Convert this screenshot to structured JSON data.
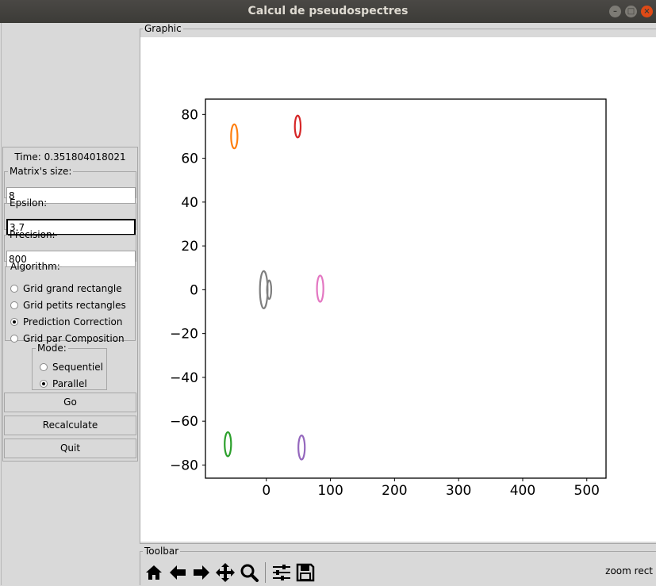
{
  "window": {
    "title": "Calcul de pseudospectres"
  },
  "controls": {
    "time_label": "Time: 0.351804018021",
    "matrix_size": {
      "legend": "Matrix's size:",
      "value": "8"
    },
    "epsilon": {
      "legend": "Epsilon:",
      "value": "3.7"
    },
    "precision": {
      "legend": "Precision:",
      "value": "800"
    },
    "algorithm": {
      "legend": "Algorithm:",
      "options": [
        "Grid grand rectangle",
        "Grid petits rectangles",
        "Prediction Correction",
        "Grid par Composition"
      ],
      "selected": "Prediction Correction"
    },
    "mode": {
      "legend": "Mode:",
      "options": [
        "Sequentiel",
        "Parallel"
      ],
      "selected": "Parallel"
    },
    "buttons": {
      "go": "Go",
      "recalculate": "Recalculate",
      "quit": "Quit"
    }
  },
  "graphic": {
    "legend": "Graphic"
  },
  "toolbar": {
    "legend": "Toolbar",
    "status": "zoom rect",
    "icons": [
      "home-icon",
      "back-arrow-icon",
      "forward-arrow-icon",
      "pan-icon",
      "zoom-icon",
      "configure-subplots-icon",
      "save-icon"
    ]
  },
  "chart_data": {
    "type": "line",
    "title": "",
    "xlabel": "",
    "ylabel": "",
    "xlim": [
      -95,
      530
    ],
    "ylim": [
      -86,
      87
    ],
    "xticks": [
      0,
      100,
      200,
      300,
      400,
      500
    ],
    "yticks": [
      80,
      60,
      40,
      20,
      0,
      -20,
      -40,
      -60,
      -80
    ],
    "yticklabels": [
      "80",
      "60",
      "40",
      "20",
      "0",
      "−20",
      "−40",
      "−60",
      "−80"
    ],
    "grid": false,
    "series": [
      {
        "color": "#ff7f0e",
        "shape": "ellipse",
        "center": [
          -50,
          70
        ],
        "radii": [
          5,
          5.5
        ]
      },
      {
        "color": "#d62728",
        "shape": "ellipse",
        "center": [
          49,
          74.5
        ],
        "radii": [
          4.5,
          5
        ]
      },
      {
        "color": "#7f7f7f",
        "shape": "blob",
        "center": [
          -4,
          0
        ],
        "radii": [
          6,
          8.5
        ]
      },
      {
        "color": "#e377c2",
        "shape": "ellipse",
        "center": [
          84,
          0.5
        ],
        "radii": [
          5,
          6
        ]
      },
      {
        "color": "#2ca02c",
        "shape": "ellipse",
        "center": [
          -60,
          -70.5
        ],
        "radii": [
          5,
          5.5
        ]
      },
      {
        "color": "#9467bd",
        "shape": "ellipse",
        "center": [
          55,
          -72
        ],
        "radii": [
          5,
          5.5
        ]
      }
    ]
  }
}
